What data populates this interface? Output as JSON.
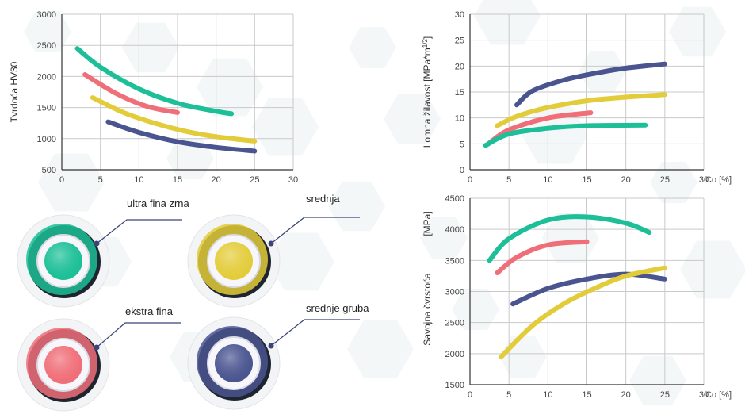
{
  "colors": {
    "ultra_fina": "#1cbf97",
    "ekstra_fina": "#f06e78",
    "srednja": "#e3cc3a",
    "srednje_gruba": "#4a5590"
  },
  "legend": [
    {
      "key": "ultra_fina",
      "label": "ultra fina zrna"
    },
    {
      "key": "srednja",
      "label": "srednja"
    },
    {
      "key": "ekstra_fina",
      "label": "ekstra fina"
    },
    {
      "key": "srednje_gruba",
      "label": "srednje gruba"
    }
  ],
  "chart_data": [
    {
      "type": "line",
      "ylabel": "Tvrdoća HV30",
      "xlabel": "",
      "xlim": [
        0,
        30
      ],
      "ylim": [
        500,
        3000
      ],
      "xticks": [
        "0",
        "5",
        "10",
        "15",
        "20",
        "25",
        "30"
      ],
      "yticks": [
        "500",
        "1000",
        "1500",
        "2000",
        "2500",
        "3000"
      ],
      "series": [
        {
          "key": "ultra_fina",
          "x": [
            2,
            5,
            10,
            15,
            20,
            22
          ],
          "y": [
            2450,
            2150,
            1800,
            1570,
            1440,
            1400
          ]
        },
        {
          "key": "ekstra_fina",
          "x": [
            3,
            7,
            11,
            15
          ],
          "y": [
            2030,
            1730,
            1520,
            1420
          ]
        },
        {
          "key": "srednja",
          "x": [
            4,
            8,
            12,
            16,
            20,
            25
          ],
          "y": [
            1660,
            1420,
            1250,
            1120,
            1030,
            960
          ]
        },
        {
          "key": "srednje_gruba",
          "x": [
            6,
            10,
            15,
            20,
            25
          ],
          "y": [
            1270,
            1100,
            950,
            860,
            800
          ]
        }
      ]
    },
    {
      "type": "line",
      "ylabel": "Lomna žilavost [MPa*m",
      "ylabel_sup": "1/2",
      "ylabel_end": "]",
      "xlabel": "Co [%]",
      "xlim": [
        0,
        30
      ],
      "ylim": [
        0,
        30
      ],
      "xticks": [
        "0",
        "5",
        "10",
        "15",
        "20",
        "25",
        "30"
      ],
      "yticks": [
        "0",
        "5",
        "10",
        "15",
        "20",
        "25",
        "30"
      ],
      "series": [
        {
          "key": "srednje_gruba",
          "x": [
            6,
            8,
            12,
            16,
            20,
            25
          ],
          "y": [
            12.5,
            15.2,
            17.3,
            18.6,
            19.6,
            20.4
          ]
        },
        {
          "key": "srednja",
          "x": [
            3.5,
            6,
            10,
            15,
            20,
            25
          ],
          "y": [
            8.5,
            10.3,
            12.0,
            13.3,
            14.0,
            14.5
          ]
        },
        {
          "key": "ekstra_fina",
          "x": [
            2.5,
            5,
            10,
            15.5
          ],
          "y": [
            5.2,
            7.7,
            10.0,
            11.0
          ]
        },
        {
          "key": "ultra_fina",
          "x": [
            2,
            5,
            10,
            15,
            22.5
          ],
          "y": [
            4.7,
            6.9,
            8.0,
            8.5,
            8.6
          ]
        }
      ]
    },
    {
      "type": "line",
      "ylabel": "Savojna čvrstoća",
      "ylabel2": "[MPa]",
      "xlabel": "Co [%]",
      "xlim": [
        0,
        30
      ],
      "ylim": [
        1500,
        4500
      ],
      "xticks": [
        "0",
        "5",
        "10",
        "15",
        "20",
        "25",
        "30"
      ],
      "yticks": [
        "1500",
        "2000",
        "2500",
        "3000",
        "3500",
        "4000",
        "4500"
      ],
      "series": [
        {
          "key": "ultra_fina",
          "x": [
            2.5,
            5,
            10,
            15,
            20,
            23
          ],
          "y": [
            3500,
            3850,
            4150,
            4200,
            4100,
            3950
          ]
        },
        {
          "key": "ekstra_fina",
          "x": [
            3.5,
            6,
            10,
            15
          ],
          "y": [
            3300,
            3550,
            3750,
            3800
          ]
        },
        {
          "key": "srednje_gruba",
          "x": [
            5.5,
            10,
            15,
            20,
            25
          ],
          "y": [
            2800,
            3050,
            3200,
            3280,
            3200
          ]
        },
        {
          "key": "srednja",
          "x": [
            4,
            8,
            12,
            16,
            20,
            25
          ],
          "y": [
            1950,
            2450,
            2800,
            3050,
            3250,
            3380
          ]
        }
      ]
    }
  ]
}
